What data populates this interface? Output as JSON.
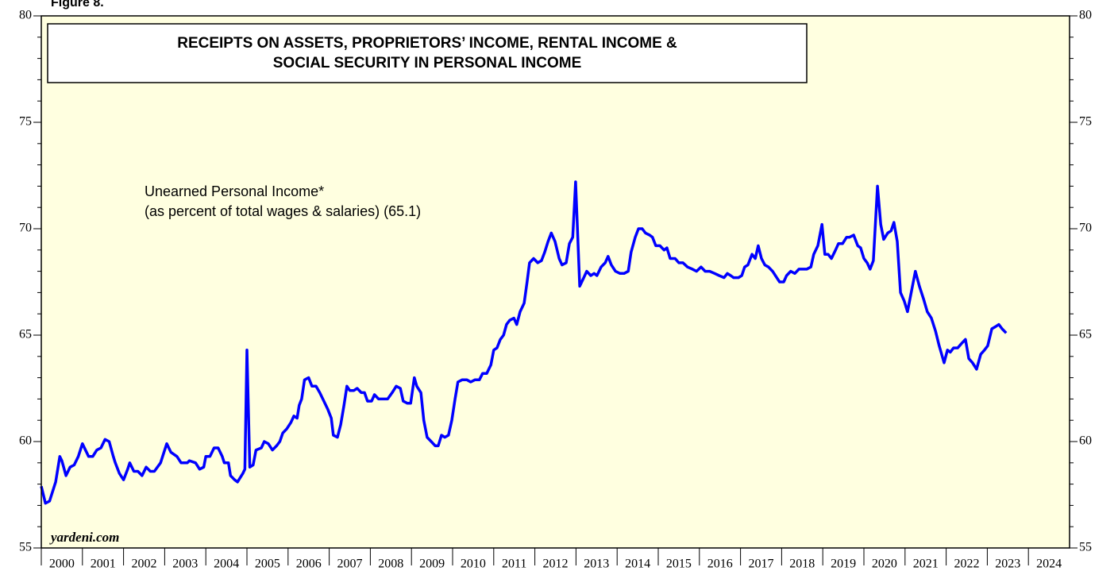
{
  "chart_data": {
    "type": "line",
    "figure_label": "Figure 8.",
    "title": [
      "RECEIPTS ON ASSETS, PROPRIETORS’ INCOME, RENTAL INCOME &",
      "SOCIAL SECURITY IN PERSONAL INCOME"
    ],
    "series_note": "(as percent of total wages & salaries) (65.1)",
    "source": "yardeni.com",
    "xlim": [
      2000,
      2025
    ],
    "xticks": [
      2000,
      2001,
      2002,
      2003,
      2004,
      2005,
      2006,
      2007,
      2008,
      2009,
      2010,
      2011,
      2012,
      2013,
      2014,
      2015,
      2016,
      2017,
      2018,
      2019,
      2020,
      2021,
      2022,
      2023,
      2024
    ],
    "ylim": [
      55,
      80
    ],
    "yticks": [
      55,
      60,
      65,
      70,
      75,
      80
    ],
    "minor_yticks": [
      56,
      57,
      58,
      59,
      61,
      62,
      63,
      64,
      66,
      67,
      68,
      69,
      71,
      72,
      73,
      74,
      76,
      77,
      78,
      79
    ],
    "x": [
      2000.0,
      2000.1,
      2000.2,
      2000.35,
      2000.45,
      2000.5,
      2000.6,
      2000.7,
      2000.8,
      2000.9,
      2001.0,
      2001.15,
      2001.25,
      2001.35,
      2001.45,
      2001.55,
      2001.65,
      2001.75,
      2001.8,
      2001.9,
      2002.0,
      2002.1,
      2002.15,
      2002.25,
      2002.35,
      2002.45,
      2002.55,
      2002.65,
      2002.75,
      2002.9,
      2003.0,
      2003.05,
      2003.15,
      2003.3,
      2003.4,
      2003.55,
      2003.6,
      2003.75,
      2003.85,
      2003.95,
      2004.0,
      2004.1,
      2004.2,
      2004.3,
      2004.4,
      2004.45,
      2004.55,
      2004.6,
      2004.7,
      2004.77,
      2004.9,
      2004.95,
      2005.0,
      2005.07,
      2005.15,
      2005.22,
      2005.35,
      2005.42,
      2005.52,
      2005.62,
      2005.72,
      2005.8,
      2005.87,
      2005.97,
      2006.07,
      2006.14,
      2006.22,
      2006.27,
      2006.33,
      2006.4,
      2006.5,
      2006.58,
      2006.68,
      2006.77,
      2006.87,
      2006.97,
      2007.05,
      2007.1,
      2007.2,
      2007.28,
      2007.36,
      2007.43,
      2007.5,
      2007.6,
      2007.68,
      2007.78,
      2007.86,
      2007.93,
      2008.03,
      2008.1,
      2008.2,
      2008.3,
      2008.42,
      2008.53,
      2008.63,
      2008.73,
      2008.8,
      2008.9,
      2008.98,
      2009.07,
      2009.13,
      2009.23,
      2009.3,
      2009.38,
      2009.48,
      2009.58,
      2009.65,
      2009.73,
      2009.81,
      2009.9,
      2009.98,
      2010.06,
      2010.13,
      2010.23,
      2010.35,
      2010.44,
      2010.54,
      2010.65,
      2010.73,
      2010.83,
      2010.93,
      2011.0,
      2011.08,
      2011.16,
      2011.24,
      2011.31,
      2011.39,
      2011.49,
      2011.56,
      2011.64,
      2011.74,
      2011.81,
      2011.87,
      2011.97,
      2012.07,
      2012.16,
      2012.24,
      2012.32,
      2012.4,
      2012.49,
      2012.59,
      2012.66,
      2012.76,
      2012.84,
      2012.92,
      2012.99,
      2013.09,
      2013.19,
      2013.26,
      2013.36,
      2013.44,
      2013.51,
      2013.61,
      2013.71,
      2013.78,
      2013.86,
      2013.96,
      2014.07,
      2014.17,
      2014.27,
      2014.34,
      2014.44,
      2014.52,
      2014.61,
      2014.69,
      2014.79,
      2014.86,
      2014.94,
      2015.04,
      2015.14,
      2015.21,
      2015.29,
      2015.41,
      2015.5,
      2015.6,
      2015.71,
      2015.83,
      2015.93,
      2016.04,
      2016.14,
      2016.25,
      2016.37,
      2016.48,
      2016.6,
      2016.68,
      2016.76,
      2016.83,
      2016.95,
      2017.03,
      2017.1,
      2017.18,
      2017.28,
      2017.36,
      2017.43,
      2017.51,
      2017.59,
      2017.68,
      2017.78,
      2017.88,
      2017.95,
      2018.05,
      2018.12,
      2018.22,
      2018.32,
      2018.42,
      2018.51,
      2018.61,
      2018.71,
      2018.78,
      2018.88,
      2018.98,
      2019.05,
      2019.13,
      2019.21,
      2019.31,
      2019.38,
      2019.48,
      2019.58,
      2019.65,
      2019.75,
      2019.85,
      2019.92,
      2020.0,
      2020.08,
      2020.15,
      2020.23,
      2020.33,
      2020.41,
      2020.48,
      2020.58,
      2020.66,
      2020.73,
      2020.81,
      2020.89,
      2020.98,
      2021.06,
      2021.16,
      2021.25,
      2021.35,
      2021.45,
      2021.54,
      2021.64,
      2021.74,
      2021.83,
      2021.95,
      2022.03,
      2022.1,
      2022.18,
      2022.28,
      2022.37,
      2022.47,
      2022.55,
      2022.64,
      2022.74,
      2022.84,
      2022.93,
      2023.01,
      2023.11,
      2023.2,
      2023.28,
      2023.36,
      2023.46
    ],
    "series": [
      {
        "name": "Unearned Personal Income*",
        "color": "#0000ff",
        "values": [
          57.9,
          57.1,
          57.2,
          58.1,
          59.3,
          59.1,
          58.4,
          58.8,
          58.9,
          59.3,
          59.9,
          59.3,
          59.3,
          59.6,
          59.7,
          60.1,
          60.0,
          59.3,
          59.0,
          58.5,
          58.2,
          58.7,
          59.0,
          58.6,
          58.6,
          58.4,
          58.8,
          58.6,
          58.6,
          59.0,
          59.6,
          59.9,
          59.5,
          59.3,
          59.0,
          59.0,
          59.1,
          59.0,
          58.7,
          58.8,
          59.3,
          59.3,
          59.7,
          59.7,
          59.3,
          59.0,
          59.0,
          58.4,
          58.2,
          58.1,
          58.5,
          58.7,
          64.3,
          58.8,
          58.9,
          59.6,
          59.7,
          60.0,
          59.9,
          59.6,
          59.8,
          60.0,
          60.4,
          60.6,
          60.9,
          61.2,
          61.1,
          61.7,
          62.0,
          62.9,
          63.0,
          62.6,
          62.6,
          62.3,
          61.9,
          61.5,
          61.1,
          60.3,
          60.2,
          60.8,
          61.7,
          62.6,
          62.4,
          62.4,
          62.5,
          62.3,
          62.3,
          61.9,
          61.9,
          62.2,
          62.0,
          62.0,
          62.0,
          62.3,
          62.6,
          62.5,
          61.9,
          61.8,
          61.8,
          63.0,
          62.6,
          62.3,
          61.0,
          60.2,
          60.0,
          59.8,
          59.8,
          60.3,
          60.2,
          60.3,
          61.0,
          62.0,
          62.8,
          62.9,
          62.9,
          62.8,
          62.9,
          62.9,
          63.2,
          63.2,
          63.6,
          64.3,
          64.4,
          64.8,
          65.0,
          65.5,
          65.7,
          65.8,
          65.5,
          66.1,
          66.5,
          67.5,
          68.4,
          68.6,
          68.4,
          68.5,
          68.9,
          69.4,
          69.8,
          69.4,
          68.6,
          68.3,
          68.4,
          69.3,
          69.6,
          72.2,
          67.3,
          67.7,
          68.0,
          67.8,
          67.9,
          67.8,
          68.2,
          68.4,
          68.7,
          68.3,
          68.0,
          67.9,
          67.9,
          68.0,
          68.9,
          69.6,
          70.0,
          70.0,
          69.8,
          69.7,
          69.6,
          69.2,
          69.2,
          69.0,
          69.1,
          68.6,
          68.6,
          68.4,
          68.4,
          68.2,
          68.1,
          68.0,
          68.2,
          68.0,
          68.0,
          67.9,
          67.8,
          67.7,
          67.9,
          67.8,
          67.7,
          67.7,
          67.8,
          68.2,
          68.3,
          68.8,
          68.6,
          69.2,
          68.6,
          68.3,
          68.2,
          68.0,
          67.7,
          67.5,
          67.5,
          67.8,
          68.0,
          67.9,
          68.1,
          68.1,
          68.1,
          68.2,
          68.8,
          69.2,
          70.2,
          68.8,
          68.8,
          68.6,
          69.0,
          69.3,
          69.3,
          69.6,
          69.6,
          69.7,
          69.2,
          69.1,
          68.6,
          68.4,
          68.1,
          68.5,
          72.0,
          70.2,
          69.5,
          69.8,
          69.9,
          70.3,
          69.4,
          67.0,
          66.6,
          66.1,
          67.1,
          68.0,
          67.3,
          66.7,
          66.1,
          65.8,
          65.2,
          64.5,
          63.7,
          64.3,
          64.2,
          64.4,
          64.4,
          64.6,
          64.8,
          63.9,
          63.7,
          63.4,
          64.1,
          64.3,
          64.5,
          65.3,
          65.4,
          65.5,
          65.3,
          65.1
        ]
      }
    ]
  }
}
